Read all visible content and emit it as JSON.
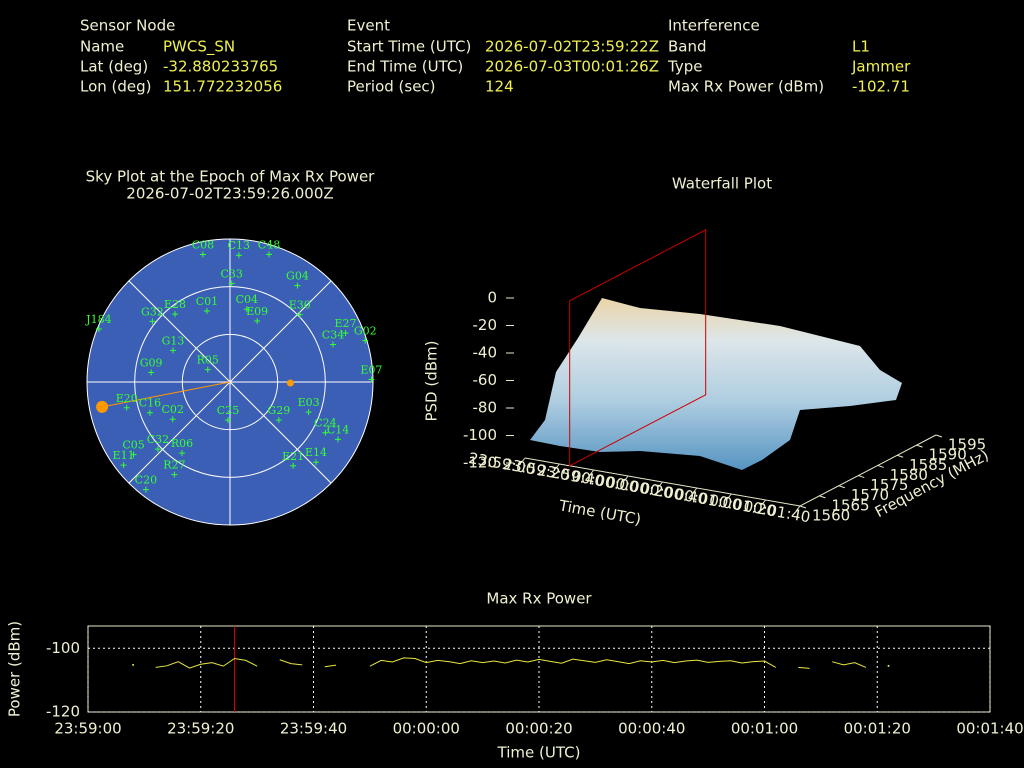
{
  "info": {
    "sensor": {
      "title": "Sensor Node",
      "rows": [
        [
          "Name",
          "PWCS_SN"
        ],
        [
          "Lat (deg)",
          "-32.880233765"
        ],
        [
          "Lon (deg)",
          "151.772232056"
        ]
      ]
    },
    "event": {
      "title": "Event",
      "rows": [
        [
          "Start Time (UTC)",
          "2026-07-02T23:59:22Z"
        ],
        [
          "End Time (UTC)",
          "2026-07-03T00:01:26Z"
        ],
        [
          "Period (sec)",
          "124"
        ]
      ]
    },
    "interference": {
      "title": "Interference",
      "rows": [
        [
          "Band",
          "L1"
        ],
        [
          "Type",
          "Jammer"
        ],
        [
          "Max Rx Power (dBm)",
          "-102.71"
        ]
      ]
    }
  },
  "chart_data": [
    {
      "type": "sky",
      "title": "Sky Plot at the Epoch of Max Rx Power",
      "subtitle": "2026-07-02T23:59:26.000Z",
      "rings": [
        0,
        30,
        60
      ],
      "spokes": [
        0,
        45,
        90,
        135,
        180,
        225,
        270,
        315
      ],
      "color": "#33ff33",
      "satellites": [
        {
          "name": "C08",
          "az": 348,
          "el": 8
        },
        {
          "name": "C13",
          "az": 4,
          "el": 10
        },
        {
          "name": "C48",
          "az": 17,
          "el": 6
        },
        {
          "name": "C33",
          "az": 1,
          "el": 28
        },
        {
          "name": "G04",
          "az": 35,
          "el": 16
        },
        {
          "name": "E30",
          "az": 46,
          "el": 29
        },
        {
          "name": "C04",
          "az": 13,
          "el": 43
        },
        {
          "name": "C01",
          "az": 342,
          "el": 43
        },
        {
          "name": "E09",
          "az": 24,
          "el": 48
        },
        {
          "name": "E28",
          "az": 321,
          "el": 35
        },
        {
          "name": "G32",
          "az": 308,
          "el": 28
        },
        {
          "name": "E27",
          "az": 67,
          "el": 11
        },
        {
          "name": "G02",
          "az": 73,
          "el": 1
        },
        {
          "name": "C34",
          "az": 70,
          "el": 21
        },
        {
          "name": "J184",
          "az": 292,
          "el": 1
        },
        {
          "name": "G13",
          "az": 299,
          "el": 49
        },
        {
          "name": "G09",
          "az": 277,
          "el": 40
        },
        {
          "name": "R05",
          "az": 299,
          "el": 74
        },
        {
          "name": "E07",
          "az": 89,
          "el": 1
        },
        {
          "name": "E20",
          "az": 256,
          "el": 23
        },
        {
          "name": "C16",
          "az": 249,
          "el": 36
        },
        {
          "name": "C02",
          "az": 237,
          "el": 47
        },
        {
          "name": "C25",
          "az": 183,
          "el": 66
        },
        {
          "name": "G29",
          "az": 128,
          "el": 51
        },
        {
          "name": "E03",
          "az": 111,
          "el": 37
        },
        {
          "name": "C24",
          "az": 118,
          "el": 22
        },
        {
          "name": "C14",
          "az": 118,
          "el": 13
        },
        {
          "name": "E14",
          "az": 133,
          "el": 16
        },
        {
          "name": "E21",
          "az": 143,
          "el": 24
        },
        {
          "name": "C32",
          "az": 227,
          "el": 28
        },
        {
          "name": "R06",
          "az": 214,
          "el": 36
        },
        {
          "name": "C05",
          "az": 233,
          "el": 14
        },
        {
          "name": "E11",
          "az": 232,
          "el": 5
        },
        {
          "name": "R27",
          "az": 211,
          "el": 22
        },
        {
          "name": "C20",
          "az": 218,
          "el": 4
        }
      ],
      "emitters": {
        "color": "#ff9900",
        "points": [
          {
            "az": 259,
            "el": 8
          },
          {
            "az": 91,
            "el": 52
          }
        ]
      }
    },
    {
      "type": "surface3d",
      "title": "Waterfall Plot",
      "xlabel": "Time (UTC)",
      "ylabel": "Frequency (MHz)",
      "zlabel": "PSD (dBm)",
      "xlim": [
        0,
        160
      ],
      "xticks": [
        {
          "value": 0,
          "label": "23:59:00"
        },
        {
          "value": 20,
          "label": "23:59:20"
        },
        {
          "value": 40,
          "label": "23:59:40"
        },
        {
          "value": 60,
          "label": "00:00:00"
        },
        {
          "value": 80,
          "label": "00:00:20"
        },
        {
          "value": 100,
          "label": "00:00:40"
        },
        {
          "value": 120,
          "label": "00:01:00"
        },
        {
          "value": 140,
          "label": "00:01:20"
        },
        {
          "value": 160,
          "label": "00:01:40"
        }
      ],
      "ylim": [
        1560,
        1595
      ],
      "yticks": [
        1560,
        1565,
        1570,
        1575,
        1580,
        1585,
        1590,
        1595
      ],
      "zlim": [
        -120,
        0
      ],
      "zticks": [
        0,
        -20,
        -40,
        -60,
        -80,
        -100,
        -120
      ],
      "marker_x": 26,
      "marker_color": "#cc0000"
    },
    {
      "type": "line",
      "title": "Max Rx Power",
      "xlabel": "Time (UTC)",
      "ylabel": "Power (dBm)",
      "xlim": [
        0,
        160
      ],
      "xticks": [
        {
          "value": 0,
          "label": "23:59:00"
        },
        {
          "value": 20,
          "label": "23:59:20"
        },
        {
          "value": 40,
          "label": "23:59:40"
        },
        {
          "value": 60,
          "label": "00:00:00"
        },
        {
          "value": 80,
          "label": "00:00:20"
        },
        {
          "value": 100,
          "label": "00:00:40"
        },
        {
          "value": 120,
          "label": "00:01:00"
        },
        {
          "value": 140,
          "label": "00:01:20"
        },
        {
          "value": 160,
          "label": "00:01:40"
        }
      ],
      "ylim": [
        -120,
        -93
      ],
      "yticks": [
        -100,
        -120
      ],
      "grid": true,
      "color": "#e8e840",
      "x": [
        8,
        10,
        12,
        14,
        16,
        18,
        20,
        22,
        24,
        26,
        28,
        30,
        32,
        34,
        36,
        38,
        40,
        42,
        44,
        46,
        48,
        50,
        52,
        54,
        56,
        58,
        60,
        62,
        64,
        66,
        68,
        70,
        72,
        74,
        76,
        78,
        80,
        82,
        84,
        86,
        88,
        90,
        92,
        94,
        96,
        98,
        100,
        102,
        104,
        106,
        108,
        110,
        112,
        114,
        116,
        118,
        120,
        122,
        124,
        126,
        128,
        130,
        132,
        134,
        136,
        138,
        140,
        142
      ],
      "values": [
        -105.2,
        null,
        -106.0,
        -105.5,
        -104.2,
        -106.2,
        -105.0,
        -104.5,
        -105.6,
        -103.2,
        -103.8,
        -105.6,
        null,
        -103.6,
        -104.8,
        -105.2,
        null,
        -105.8,
        -105.3,
        null,
        null,
        -105.6,
        -103.8,
        -104.3,
        -103.0,
        -103.2,
        -104.5,
        -103.8,
        -104.2,
        -104.8,
        -103.9,
        -104.5,
        -104.0,
        -104.6,
        -103.7,
        -104.3,
        -103.5,
        -104.1,
        -104.7,
        -103.4,
        -103.9,
        -104.4,
        -103.6,
        -104.2,
        -104.8,
        -103.9,
        -104.3,
        -103.8,
        -104.5,
        -104.0,
        -103.7,
        -104.4,
        -104.1,
        -103.9,
        -104.6,
        -104.2,
        -104.0,
        -106.0,
        null,
        -106.0,
        -106.3,
        null,
        -104.2,
        -105.2,
        -104.5,
        -106.0,
        null,
        -105.5
      ],
      "marker_x": 26,
      "marker_color": "#e00000"
    }
  ]
}
